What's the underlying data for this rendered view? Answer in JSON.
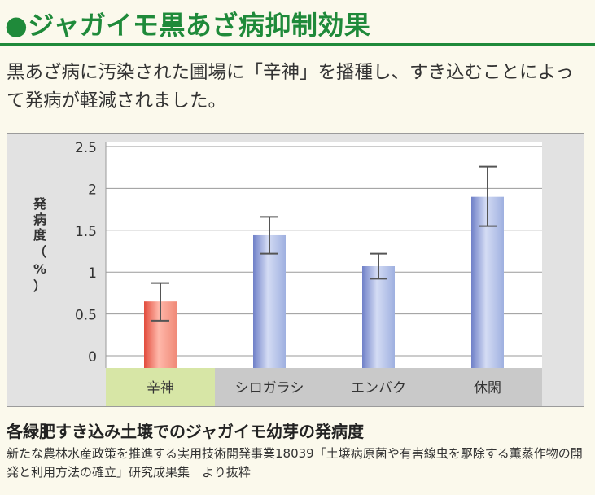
{
  "header": {
    "title": "●ジャガイモ黒あざ病抑制効果"
  },
  "lead": {
    "text": "黒あざ病に汚染された圃場に「辛神」を播種し、すき込むことによって発病が軽減されました。"
  },
  "chart_data": {
    "type": "bar",
    "ylabel": "発病度（%）",
    "ylim": [
      0,
      2.5
    ],
    "yticks": [
      "0",
      "0.5",
      "1",
      "1.5",
      "2",
      "2.5"
    ],
    "ytick_values": [
      0,
      0.5,
      1,
      1.5,
      2,
      2.5
    ],
    "grid": true,
    "categories": [
      "辛神",
      "シロガラシ",
      "エンバク",
      "休閑"
    ],
    "values": [
      0.65,
      1.44,
      1.07,
      1.9
    ],
    "error_low": [
      0.42,
      1.22,
      0.92,
      1.55
    ],
    "error_high": [
      0.87,
      1.66,
      1.22,
      2.26
    ],
    "colors": [
      "#f08a78",
      "#9fb0e0",
      "#9fb0e0",
      "#9fb0e0"
    ],
    "highlight_category_bg": "#d7e6a6"
  },
  "caption": {
    "title": "各緑肥すき込み土壌でのジャガイモ幼芽の発病度",
    "source": "新たな農林水産政策を推進する実用技術開発事業18039「土壌病原菌や有害線虫を駆除する薫蒸作物の開発と利用方法の確立」研究成果集　より抜粋"
  }
}
